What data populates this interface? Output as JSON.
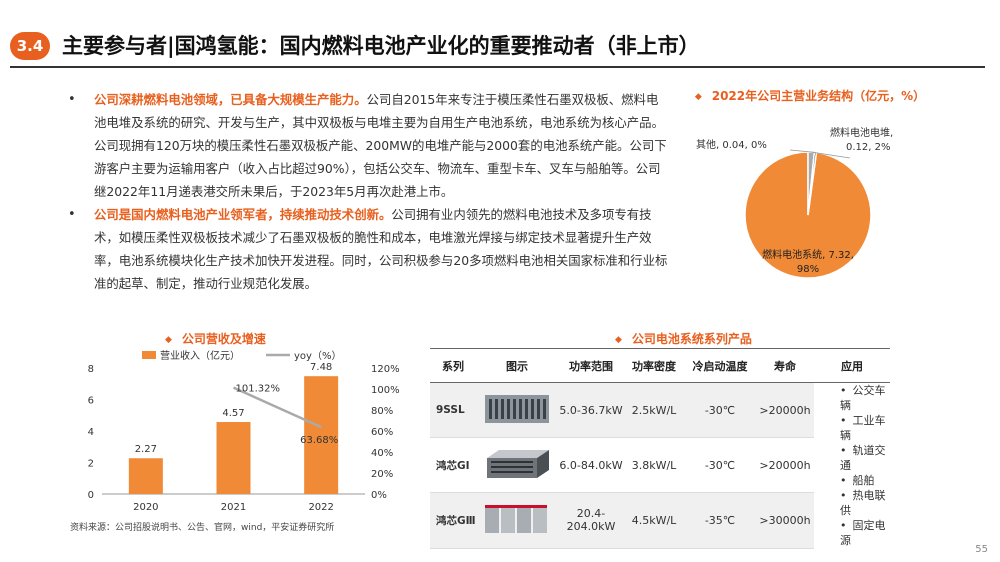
{
  "header": {
    "badge": "3.4",
    "title": "主要参与者|国鸿氢能：国内燃料电池产业化的重要推动者（非上市）"
  },
  "bullets": [
    {
      "highlight": "公司深耕燃料电池领域，已具备大规模生产能力。",
      "text": "公司自2015年来专注于模压柔性石墨双极板、燃料电池电堆及系统的研究、开发与生产，其中双极板与电堆主要为自用生产电池系统，电池系统为核心产品。公司现拥有120万块的模压柔性石墨双极板产能、200MW的电堆产能与2000套的电池系统产能。公司下游客户主要为运输用客户（收入占比超过90%），包括公交车、物流车、重型卡车、叉车与船舶等。公司继2022年11月递表港交所未果后，于2023年5月再次赴港上市。"
    },
    {
      "highlight": "公司是国内燃料电池产业领军者，持续推动技术创新。",
      "text": "公司拥有业内领先的燃料电池技术及多项专有技术，如模压柔性双极板技术减少了石墨双极板的脆性和成本，电堆激光焊接与绑定技术显著提升生产效率，电池系统模块化生产技术加快开发进程。同时，公司积极参与20多项燃料电池相关国家标准和行业标准的起草、制定，推动行业规范化发展。"
    }
  ],
  "pie_section": {
    "title": "2022年公司主营业务结构（亿元，%）"
  },
  "bar_section": {
    "title": "公司营收及增速"
  },
  "table_section": {
    "title": "公司电池系统系列产品"
  },
  "chart_data": [
    {
      "type": "pie",
      "title": "2022年公司主营业务结构（亿元，%）",
      "slices": [
        {
          "name": "燃料电池系统",
          "value": 7.32,
          "pct": "98%",
          "label": "燃料电池系统, 7.32, 98%",
          "color": "#f08a36"
        },
        {
          "name": "燃料电池电堆",
          "value": 0.12,
          "pct": "2%",
          "label": "燃料电池电堆, 0.12, 2%",
          "color": "#aaaaaa"
        },
        {
          "name": "其他",
          "value": 0.04,
          "pct": "0%",
          "label": "其他, 0.04, 0%",
          "color": "#555555"
        }
      ]
    },
    {
      "type": "bar",
      "title": "公司营收及增速",
      "categories": [
        "2020",
        "2021",
        "2022"
      ],
      "series": [
        {
          "name": "营业收入（亿元）",
          "type": "bar",
          "axis": "left",
          "values": [
            2.27,
            4.57,
            7.48
          ],
          "labels": [
            "2.27",
            "4.57",
            "7.48"
          ],
          "color": "#f08a36"
        },
        {
          "name": "yoy（%）",
          "type": "line",
          "axis": "right",
          "values": [
            null,
            101.32,
            63.68
          ],
          "labels": [
            "",
            "101.32%",
            "63.68%"
          ],
          "color": "#aaaaaa"
        }
      ],
      "ylim": [
        0,
        8
      ],
      "yticks": [
        "0",
        "2",
        "4",
        "6",
        "8"
      ],
      "y2lim": [
        0,
        120
      ],
      "y2ticks": [
        "0%",
        "20%",
        "40%",
        "60%",
        "80%",
        "100%",
        "120%"
      ],
      "legend": "top"
    }
  ],
  "table": {
    "headers": [
      "系列",
      "图示",
      "功率范围",
      "功率密度",
      "冷启动温度",
      "寿命",
      "应用"
    ],
    "rows": [
      {
        "series": "9SSL",
        "power_range": "5.0-36.7kW",
        "density": "2.5kW/L",
        "cold_start": "-30℃",
        "life": ">20000h"
      },
      {
        "series": "鸿芯GⅠ",
        "power_range": "6.0-84.0kW",
        "density": "3.8kW/L",
        "cold_start": "-30℃",
        "life": ">20000h"
      },
      {
        "series": "鸿芯GⅢ",
        "power_range": "20.4-204.0kW",
        "density": "4.5kW/L",
        "cold_start": "-35℃",
        "life": ">30000h"
      }
    ],
    "applications": [
      "公交车辆",
      "工业车辆",
      "轨道交通",
      "船舶",
      "热电联供",
      "固定电源"
    ]
  },
  "footer": {
    "source": "资料来源：公司招股说明书、公告、官网，wind，平安证券研究所",
    "page": "55"
  }
}
